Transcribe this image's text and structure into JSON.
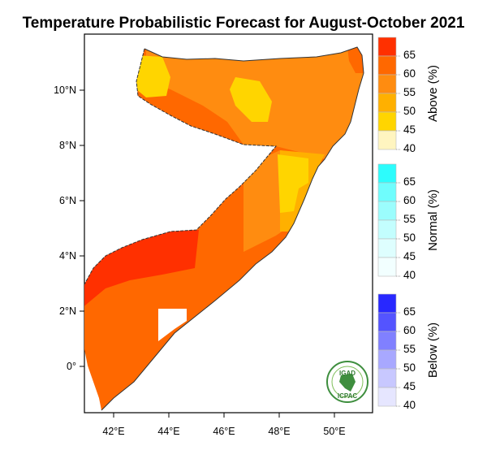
{
  "title": "Temperature Probabilistic Forecast for August-October 2021",
  "map": {
    "lat_ticks": [
      "10°N",
      "8°N",
      "6°N",
      "4°N",
      "2°N",
      "0°"
    ],
    "lon_ticks": [
      "42°E",
      "44°E",
      "46°E",
      "48°E",
      "50°E"
    ]
  },
  "legend": {
    "above": {
      "title": "Above (%)",
      "labels": [
        "65",
        "60",
        "55",
        "50",
        "45",
        "40"
      ],
      "colors": [
        "#ff3000",
        "#ff6800",
        "#ff8c10",
        "#ffb000",
        "#ffd500",
        "#fff5c0"
      ]
    },
    "normal": {
      "title": "Normal (%)",
      "labels": [
        "65",
        "60",
        "55",
        "50",
        "45",
        "40"
      ],
      "colors": [
        "#2dfcfc",
        "#6ffdfd",
        "#9bfdfd",
        "#c3fefe",
        "#defefe",
        "#f2ffff"
      ]
    },
    "below": {
      "title": "Below (%)",
      "labels": [
        "65",
        "60",
        "55",
        "50",
        "45",
        "40"
      ],
      "colors": [
        "#2828ff",
        "#5454ff",
        "#8080ff",
        "#a8a8ff",
        "#c8c8ff",
        "#e6e6ff"
      ]
    }
  },
  "logo": {
    "top": "IGAD",
    "bottom": "ICPAC"
  }
}
